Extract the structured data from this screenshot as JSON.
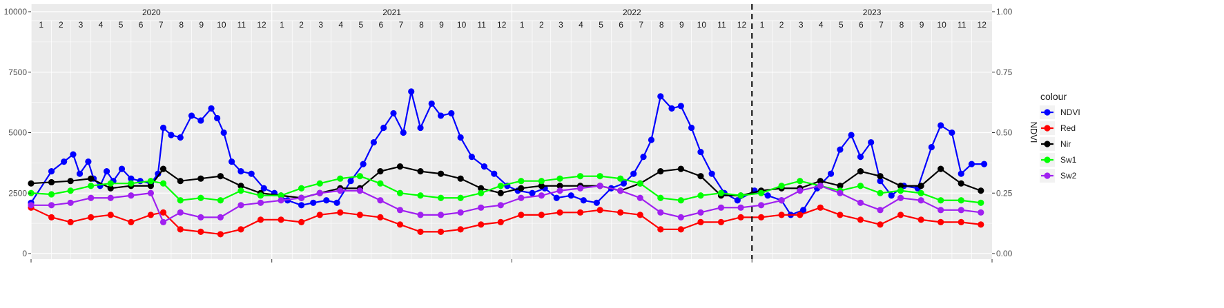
{
  "chart_data": {
    "type": "line",
    "title": "",
    "xlabel": "",
    "ylabel_left": "",
    "ylabel_right": "NDVI",
    "ylim_left": [
      0,
      10000
    ],
    "ylim_right": [
      0,
      1
    ],
    "left_ticks": [
      {
        "value": 0,
        "label": "0"
      },
      {
        "value": 2500,
        "label": "2500"
      },
      {
        "value": 5000,
        "label": "5000"
      },
      {
        "value": 7500,
        "label": "7500"
      },
      {
        "value": 10000,
        "label": "10000"
      }
    ],
    "right_ticks": [
      {
        "value": 0,
        "label": "0.00"
      },
      {
        "value": 0.25,
        "label": "0.25"
      },
      {
        "value": 0.5,
        "label": "0.50"
      },
      {
        "value": 0.75,
        "label": "0.75"
      },
      {
        "value": 1,
        "label": "1.00"
      }
    ],
    "x_range": [
      "2020-01-01",
      "2024-01-01"
    ],
    "years": [
      "2020",
      "2021",
      "2022",
      "2023"
    ],
    "months": [
      "1",
      "2",
      "3",
      "4",
      "5",
      "6",
      "7",
      "8",
      "9",
      "10",
      "11",
      "12"
    ],
    "vline_date": "2023-01-01",
    "grid": true,
    "legend": {
      "title": "colour",
      "position": "right"
    },
    "series": [
      {
        "name": "NDVI",
        "color": "#0000FF",
        "x": [
          "2020-01-01",
          "2020-02-01",
          "2020-02-20",
          "2020-03-05",
          "2020-03-15",
          "2020-03-28",
          "2020-04-05",
          "2020-04-15",
          "2020-04-25",
          "2020-05-05",
          "2020-05-18",
          "2020-06-01",
          "2020-06-15",
          "2020-07-01",
          "2020-07-12",
          "2020-07-20",
          "2020-08-01",
          "2020-08-15",
          "2020-09-01",
          "2020-09-15",
          "2020-10-01",
          "2020-10-10",
          "2020-10-20",
          "2020-11-01",
          "2020-11-15",
          "2020-12-01",
          "2020-12-20",
          "2021-01-05",
          "2021-01-25",
          "2021-02-15",
          "2021-03-05",
          "2021-03-25",
          "2021-04-10",
          "2021-05-01",
          "2021-05-20",
          "2021-06-05",
          "2021-06-20",
          "2021-07-05",
          "2021-07-20",
          "2021-08-01",
          "2021-08-15",
          "2021-09-01",
          "2021-09-15",
          "2021-10-01",
          "2021-10-15",
          "2021-11-01",
          "2021-11-20",
          "2021-12-05",
          "2021-12-25",
          "2022-01-10",
          "2022-02-01",
          "2022-02-20",
          "2022-03-10",
          "2022-04-01",
          "2022-04-20",
          "2022-05-10",
          "2022-06-01",
          "2022-06-20",
          "2022-07-05",
          "2022-07-20",
          "2022-08-01",
          "2022-08-15",
          "2022-09-01",
          "2022-09-15",
          "2022-10-01",
          "2022-10-15",
          "2022-11-01",
          "2022-11-20",
          "2022-12-10",
          "2023-01-05",
          "2023-01-25",
          "2023-02-15",
          "2023-03-01",
          "2023-03-20",
          "2023-04-10",
          "2023-05-01",
          "2023-05-15",
          "2023-06-01",
          "2023-06-15",
          "2023-07-01",
          "2023-07-15",
          "2023-08-01",
          "2023-08-20",
          "2023-09-10",
          "2023-10-01",
          "2023-10-15",
          "2023-11-01",
          "2023-11-15",
          "2023-12-01",
          "2023-12-20"
        ],
        "y": [
          0.21,
          0.34,
          0.38,
          0.41,
          0.33,
          0.38,
          0.31,
          0.28,
          0.34,
          0.3,
          0.35,
          0.31,
          0.3,
          0.29,
          0.33,
          0.52,
          0.49,
          0.48,
          0.57,
          0.55,
          0.6,
          0.56,
          0.5,
          0.38,
          0.34,
          0.33,
          0.27,
          0.25,
          0.22,
          0.2,
          0.21,
          0.22,
          0.21,
          0.3,
          0.37,
          0.46,
          0.52,
          0.58,
          0.5,
          0.67,
          0.52,
          0.62,
          0.57,
          0.58,
          0.48,
          0.4,
          0.36,
          0.33,
          0.28,
          0.26,
          0.25,
          0.27,
          0.23,
          0.24,
          0.22,
          0.21,
          0.27,
          0.29,
          0.33,
          0.4,
          0.47,
          0.65,
          0.6,
          0.61,
          0.52,
          0.42,
          0.33,
          0.25,
          0.22,
          0.26,
          0.24,
          0.22,
          0.16,
          0.18,
          0.27,
          0.33,
          0.43,
          0.49,
          0.4,
          0.46,
          0.3,
          0.24,
          0.28,
          0.27,
          0.44,
          0.53,
          0.5,
          0.33,
          0.37,
          0.37
        ]
      },
      {
        "name": "Red",
        "color": "#FF0000",
        "x": [
          "2020-01-01",
          "2020-02-01",
          "2020-03-01",
          "2020-04-01",
          "2020-05-01",
          "2020-06-01",
          "2020-07-01",
          "2020-07-20",
          "2020-08-15",
          "2020-09-15",
          "2020-10-15",
          "2020-11-15",
          "2020-12-15",
          "2021-01-15",
          "2021-02-15",
          "2021-03-15",
          "2021-04-15",
          "2021-05-15",
          "2021-06-15",
          "2021-07-15",
          "2021-08-15",
          "2021-09-15",
          "2021-10-15",
          "2021-11-15",
          "2021-12-15",
          "2022-01-15",
          "2022-02-15",
          "2022-03-15",
          "2022-04-15",
          "2022-05-15",
          "2022-06-15",
          "2022-07-15",
          "2022-08-15",
          "2022-09-15",
          "2022-10-15",
          "2022-11-15",
          "2022-12-15",
          "2023-01-15",
          "2023-02-15",
          "2023-03-15",
          "2023-04-15",
          "2023-05-15",
          "2023-06-15",
          "2023-07-15",
          "2023-08-15",
          "2023-09-15",
          "2023-10-15",
          "2023-11-15",
          "2023-12-15"
        ],
        "y": [
          1900,
          1500,
          1300,
          1500,
          1600,
          1300,
          1600,
          1700,
          1000,
          900,
          800,
          1000,
          1400,
          1400,
          1300,
          1600,
          1700,
          1600,
          1500,
          1200,
          900,
          900,
          1000,
          1200,
          1300,
          1600,
          1600,
          1700,
          1700,
          1800,
          1700,
          1600,
          1000,
          1000,
          1300,
          1300,
          1500,
          1500,
          1600,
          1600,
          1900,
          1600,
          1400,
          1200,
          1600,
          1400,
          1300,
          1300,
          1200
        ]
      },
      {
        "name": "Nir",
        "color": "#000000",
        "x": [
          "2020-01-01",
          "2020-02-01",
          "2020-03-01",
          "2020-04-01",
          "2020-05-01",
          "2020-06-01",
          "2020-07-01",
          "2020-07-20",
          "2020-08-15",
          "2020-09-15",
          "2020-10-15",
          "2020-11-15",
          "2020-12-15",
          "2021-01-15",
          "2021-02-15",
          "2021-03-15",
          "2021-04-15",
          "2021-05-15",
          "2021-06-15",
          "2021-07-15",
          "2021-08-15",
          "2021-09-15",
          "2021-10-15",
          "2021-11-15",
          "2021-12-15",
          "2022-01-15",
          "2022-02-15",
          "2022-03-15",
          "2022-04-15",
          "2022-05-15",
          "2022-06-15",
          "2022-07-15",
          "2022-08-15",
          "2022-09-15",
          "2022-10-15",
          "2022-11-15",
          "2022-12-15",
          "2023-01-15",
          "2023-02-15",
          "2023-03-15",
          "2023-04-15",
          "2023-05-15",
          "2023-06-15",
          "2023-07-15",
          "2023-08-15",
          "2023-09-15",
          "2023-10-15",
          "2023-11-15",
          "2023-12-15"
        ],
        "y": [
          2900,
          2950,
          3000,
          3100,
          2700,
          2800,
          2800,
          3500,
          3000,
          3100,
          3200,
          2800,
          2500,
          2400,
          2300,
          2500,
          2700,
          2700,
          3400,
          3600,
          3400,
          3300,
          3100,
          2700,
          2500,
          2700,
          2800,
          2800,
          2800,
          2800,
          2600,
          2900,
          3400,
          3500,
          3200,
          2400,
          2400,
          2600,
          2700,
          2700,
          3000,
          2800,
          3400,
          3200,
          2800,
          2800,
          3500,
          2900,
          2600
        ]
      },
      {
        "name": "Sw1",
        "color": "#00FF00",
        "x": [
          "2020-01-01",
          "2020-02-01",
          "2020-03-01",
          "2020-04-01",
          "2020-05-01",
          "2020-06-01",
          "2020-07-01",
          "2020-07-20",
          "2020-08-15",
          "2020-09-15",
          "2020-10-15",
          "2020-11-15",
          "2020-12-15",
          "2021-01-15",
          "2021-02-15",
          "2021-03-15",
          "2021-04-15",
          "2021-05-15",
          "2021-06-15",
          "2021-07-15",
          "2021-08-15",
          "2021-09-15",
          "2021-10-15",
          "2021-11-15",
          "2021-12-15",
          "2022-01-15",
          "2022-02-15",
          "2022-03-15",
          "2022-04-15",
          "2022-05-15",
          "2022-06-15",
          "2022-07-15",
          "2022-08-15",
          "2022-09-15",
          "2022-10-15",
          "2022-11-15",
          "2022-12-15",
          "2023-01-15",
          "2023-02-15",
          "2023-03-15",
          "2023-04-15",
          "2023-05-15",
          "2023-06-15",
          "2023-07-15",
          "2023-08-15",
          "2023-09-15",
          "2023-10-15",
          "2023-11-15",
          "2023-12-15"
        ],
        "y": [
          2500,
          2450,
          2600,
          2800,
          2900,
          2900,
          3000,
          2900,
          2200,
          2300,
          2200,
          2600,
          2400,
          2400,
          2700,
          2900,
          3100,
          3200,
          2900,
          2500,
          2400,
          2300,
          2300,
          2500,
          2800,
          3000,
          3000,
          3100,
          3200,
          3200,
          3100,
          2900,
          2300,
          2200,
          2400,
          2500,
          2400,
          2500,
          2800,
          3000,
          2800,
          2600,
          2800,
          2500,
          2600,
          2500,
          2200,
          2200,
          2100
        ]
      },
      {
        "name": "Sw2",
        "color": "#A020F0",
        "x": [
          "2020-01-01",
          "2020-02-01",
          "2020-03-01",
          "2020-04-01",
          "2020-05-01",
          "2020-06-01",
          "2020-07-01",
          "2020-07-20",
          "2020-08-15",
          "2020-09-15",
          "2020-10-15",
          "2020-11-15",
          "2020-12-15",
          "2021-01-15",
          "2021-02-15",
          "2021-03-15",
          "2021-04-15",
          "2021-05-15",
          "2021-06-15",
          "2021-07-15",
          "2021-08-15",
          "2021-09-15",
          "2021-10-15",
          "2021-11-15",
          "2021-12-15",
          "2022-01-15",
          "2022-02-15",
          "2022-03-15",
          "2022-04-15",
          "2022-05-15",
          "2022-06-15",
          "2022-07-15",
          "2022-08-15",
          "2022-09-15",
          "2022-10-15",
          "2022-11-15",
          "2022-12-15",
          "2023-01-15",
          "2023-02-15",
          "2023-03-15",
          "2023-04-15",
          "2023-05-15",
          "2023-06-15",
          "2023-07-15",
          "2023-08-15",
          "2023-09-15",
          "2023-10-15",
          "2023-11-15",
          "2023-12-15"
        ],
        "y": [
          2000,
          2000,
          2100,
          2300,
          2300,
          2400,
          2500,
          1300,
          1700,
          1500,
          1500,
          2000,
          2100,
          2200,
          2300,
          2500,
          2600,
          2600,
          2200,
          1800,
          1600,
          1600,
          1700,
          1900,
          2000,
          2300,
          2400,
          2600,
          2700,
          2800,
          2600,
          2300,
          1700,
          1500,
          1700,
          1900,
          1900,
          2000,
          2200,
          2600,
          2800,
          2500,
          2100,
          1800,
          2300,
          2200,
          1800,
          1800,
          1700
        ]
      }
    ]
  }
}
